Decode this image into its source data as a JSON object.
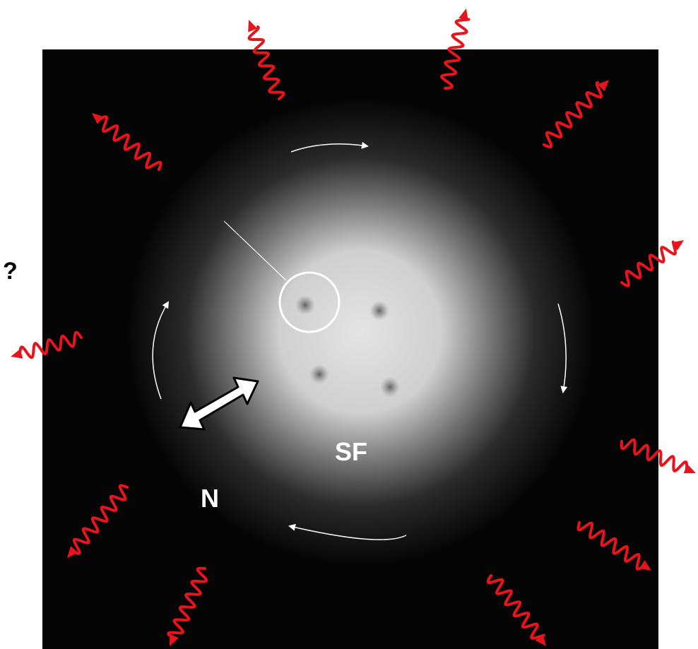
{
  "labels": {
    "sf": "SF",
    "n": "N",
    "question": "?"
  }
}
